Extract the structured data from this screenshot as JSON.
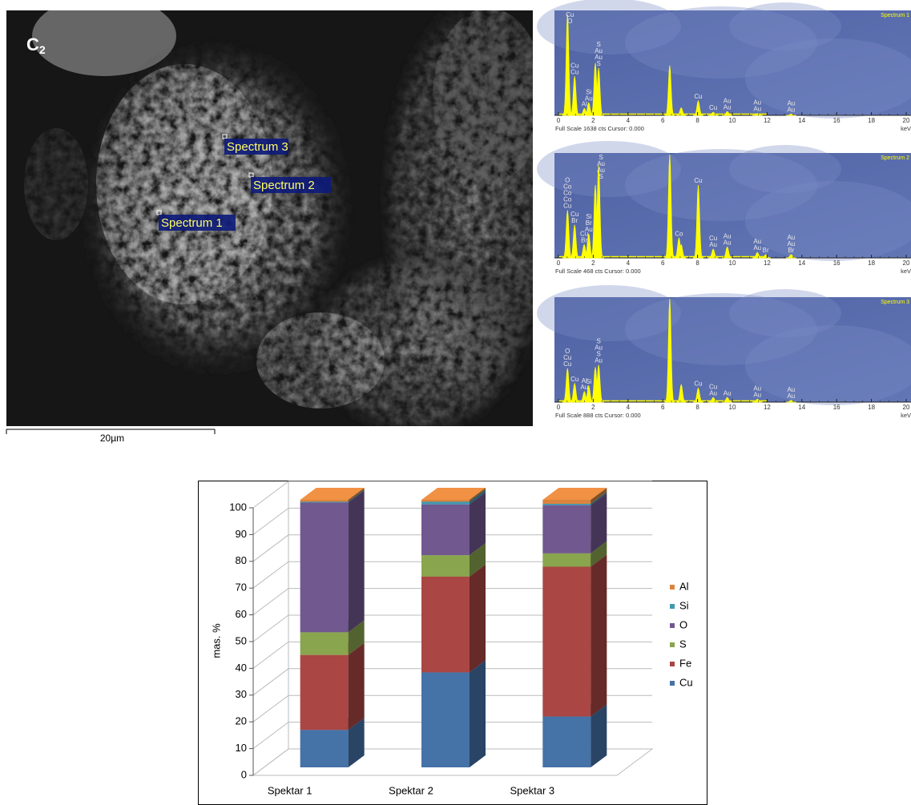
{
  "sem_image": {
    "panel_label": "C",
    "panel_label_sub": "2",
    "markers": [
      "Spectrum 3",
      "Spectrum 2",
      "Spectrum 1"
    ],
    "scale_bar": "20µm"
  },
  "spectra": [
    {
      "title": "Spectrum 1",
      "footer": "Full Scale 1638 cts Cursor: 0.000",
      "x_unit": "keV",
      "xlim": [
        0,
        20
      ],
      "xticks": [
        0,
        2,
        4,
        6,
        8,
        10,
        12,
        14,
        16,
        18,
        20
      ],
      "ylim": [
        0,
        1638
      ],
      "peaks": [
        {
          "kev": 0.52,
          "counts": 1600,
          "labels": [
            "O",
            "Cu"
          ]
        },
        {
          "kev": 0.93,
          "counts": 620,
          "labels": [
            "Cu",
            "Cu"
          ]
        },
        {
          "kev": 1.49,
          "counts": 110,
          "labels": [
            "Al"
          ]
        },
        {
          "kev": 1.74,
          "counts": 200,
          "labels": [
            "Au",
            "Si"
          ]
        },
        {
          "kev": 2.12,
          "counts": 830,
          "labels": []
        },
        {
          "kev": 2.31,
          "counts": 750,
          "labels": [
            "S",
            "Au",
            "Au",
            "S"
          ]
        },
        {
          "kev": 6.4,
          "counts": 790,
          "labels": []
        },
        {
          "kev": 7.06,
          "counts": 120,
          "labels": []
        },
        {
          "kev": 8.04,
          "counts": 230,
          "labels": [
            "Cu"
          ]
        },
        {
          "kev": 8.9,
          "counts": 50,
          "labels": [
            "Cu"
          ]
        },
        {
          "kev": 9.71,
          "counts": 60,
          "labels": [
            "Au",
            "Au"
          ]
        },
        {
          "kev": 11.44,
          "counts": 30,
          "labels": [
            "Au",
            "Au"
          ]
        },
        {
          "kev": 13.38,
          "counts": 20,
          "labels": [
            "Au",
            "Au"
          ]
        }
      ]
    },
    {
      "title": "Spectrum 2",
      "footer": "Full Scale 468 cts Cursor: 0.000",
      "x_unit": "keV",
      "xlim": [
        0,
        20
      ],
      "xticks": [
        0,
        2,
        4,
        6,
        8,
        10,
        12,
        14,
        16,
        18,
        20
      ],
      "ylim": [
        0,
        468
      ],
      "peaks": [
        {
          "kev": 0.52,
          "counts": 216,
          "labels": [
            "Cu",
            "Co",
            "Co",
            "Co",
            "O"
          ]
        },
        {
          "kev": 0.93,
          "counts": 150,
          "labels": [
            "Br",
            "Cu"
          ]
        },
        {
          "kev": 1.48,
          "counts": 60,
          "labels": [
            "Br",
            "Cu"
          ]
        },
        {
          "kev": 1.74,
          "counts": 110,
          "labels": [
            "Au",
            "Br",
            "Si"
          ]
        },
        {
          "kev": 2.12,
          "counts": 330,
          "labels": []
        },
        {
          "kev": 2.31,
          "counts": 420,
          "labels": [
            "S",
            "Au",
            "Au",
            "S"
          ]
        },
        {
          "kev": 6.4,
          "counts": 468,
          "labels": []
        },
        {
          "kev": 6.93,
          "counts": 90,
          "labels": [
            "Co"
          ]
        },
        {
          "kev": 7.06,
          "counts": 60,
          "labels": []
        },
        {
          "kev": 8.04,
          "counts": 330,
          "labels": [
            "Cu"
          ]
        },
        {
          "kev": 8.9,
          "counts": 40,
          "labels": [
            "Au",
            "Cu"
          ]
        },
        {
          "kev": 9.71,
          "counts": 50,
          "labels": [
            "Au",
            "Au"
          ]
        },
        {
          "kev": 11.44,
          "counts": 25,
          "labels": [
            "Au",
            "Au"
          ]
        },
        {
          "kev": 11.92,
          "counts": 15,
          "labels": [
            "Br"
          ]
        },
        {
          "kev": 13.38,
          "counts": 15,
          "labels": [
            "Br",
            "Au",
            "Au"
          ]
        }
      ]
    },
    {
      "title": "Spectrum 3",
      "footer": "Full Scale 888 cts Cursor: 0.000",
      "x_unit": "keV",
      "xlim": [
        0,
        20
      ],
      "xticks": [
        0,
        2,
        4,
        6,
        8,
        10,
        12,
        14,
        16,
        18,
        20
      ],
      "ylim": [
        0,
        888
      ],
      "peaks": [
        {
          "kev": 0.52,
          "counts": 290,
          "labels": [
            "Cu",
            "Cu",
            "O"
          ]
        },
        {
          "kev": 0.93,
          "counts": 160,
          "labels": [
            "Cu"
          ]
        },
        {
          "kev": 1.49,
          "counts": 90,
          "labels": [
            "Au",
            "Al"
          ]
        },
        {
          "kev": 1.74,
          "counts": 140,
          "labels": [
            "Si"
          ]
        },
        {
          "kev": 2.12,
          "counts": 300,
          "labels": []
        },
        {
          "kev": 2.31,
          "counts": 320,
          "labels": [
            "Au",
            "S",
            "Au",
            "S"
          ]
        },
        {
          "kev": 6.4,
          "counts": 888,
          "labels": []
        },
        {
          "kev": 7.06,
          "counts": 150,
          "labels": []
        },
        {
          "kev": 8.04,
          "counts": 120,
          "labels": [
            "Cu"
          ]
        },
        {
          "kev": 8.9,
          "counts": 40,
          "labels": [
            "Au",
            "Cu"
          ]
        },
        {
          "kev": 9.71,
          "counts": 40,
          "labels": [
            "Au"
          ]
        },
        {
          "kev": 11.44,
          "counts": 25,
          "labels": [
            "Au",
            "Au"
          ]
        },
        {
          "kev": 13.38,
          "counts": 15,
          "labels": [
            "Au",
            "Au"
          ]
        }
      ]
    }
  ],
  "chart_data": {
    "type": "stacked-bar-3d",
    "y_label": "mas. %",
    "categories": [
      "Spektar 1",
      "Spektar 2",
      "Spektar 3"
    ],
    "series": [
      {
        "name": "Cu",
        "color": "#4572a7",
        "values": [
          14,
          35.5,
          19
        ]
      },
      {
        "name": "Fe",
        "color": "#aa4643",
        "values": [
          28,
          35.8,
          56
        ]
      },
      {
        "name": "S",
        "color": "#89a54e",
        "values": [
          8.5,
          8,
          5
        ]
      },
      {
        "name": "O",
        "color": "#71588f",
        "values": [
          48.5,
          19,
          18
        ]
      },
      {
        "name": "Si",
        "color": "#4198af",
        "values": [
          0.3,
          1,
          0.5
        ]
      },
      {
        "name": "Al",
        "color": "#db843d",
        "values": [
          0.7,
          0.7,
          1.5
        ]
      }
    ],
    "ylim": [
      0,
      100
    ],
    "yticks": [
      0,
      10,
      20,
      30,
      40,
      50,
      60,
      70,
      80,
      90,
      100
    ],
    "grid": true,
    "legend": "right"
  }
}
